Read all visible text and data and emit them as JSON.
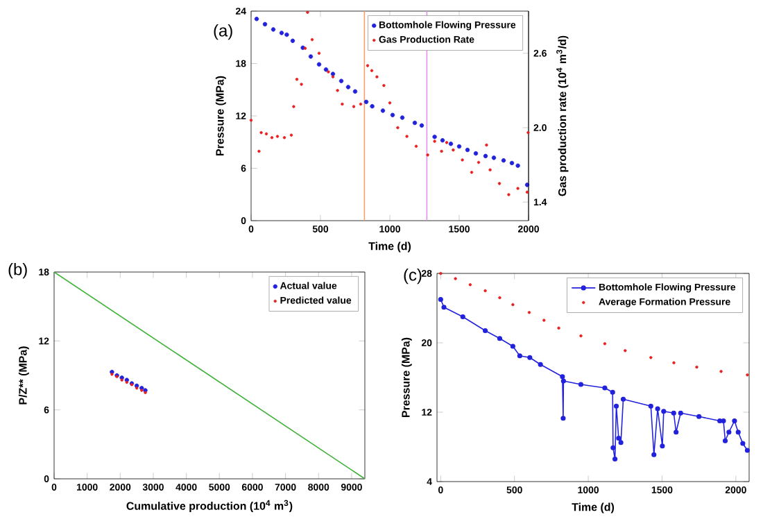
{
  "chart_data": [
    {
      "type": "scatter",
      "title": "(a)",
      "xlabel": "Time (d)",
      "ylabel": "Pressure (MPa)",
      "y2label": "Gas production rate (10$^{4}$ m$^{3}$/d)",
      "xlim": [
        0,
        2000
      ],
      "xticks": [
        0,
        500,
        1000,
        1500,
        2000
      ],
      "ylim": [
        0,
        24
      ],
      "yticks": [
        0,
        6,
        12,
        18,
        24
      ],
      "y2lim": [
        1.25,
        2.94
      ],
      "y2ticks": [
        1.4,
        {
          "value": 2.0,
          "label": "2.0"
        },
        2.6
      ],
      "legend": "top right",
      "marker": "circle",
      "ref_lines": [
        {
          "axis": "x",
          "value": 817,
          "color": "#f5a070"
        },
        {
          "axis": "x",
          "value": 1267,
          "color": "#e090e8"
        }
      ],
      "series": [
        {
          "name": "Bottomhole Flowing Pressure",
          "color": "#2222dd",
          "x": [
            40,
            100,
            160,
            220,
            257,
            300,
            373,
            430,
            490,
            540,
            590,
            650,
            700,
            750,
            830,
            873,
            950,
            1020,
            1090,
            1180,
            1230,
            1323,
            1380,
            1440,
            1500,
            1560,
            1620,
            1690,
            1750,
            1820,
            1880,
            1923,
            1990
          ],
          "values": [
            23.1,
            22.5,
            21.9,
            21.5,
            21.3,
            20.6,
            19.8,
            18.8,
            17.9,
            17.3,
            16.8,
            16.0,
            15.3,
            14.8,
            13.6,
            13.1,
            12.6,
            12.1,
            11.8,
            11.2,
            10.9,
            9.6,
            9.2,
            8.8,
            8.5,
            8.1,
            7.7,
            7.4,
            7.2,
            6.9,
            6.6,
            6.3,
            4.1
          ]
        },
        {
          "name": "Gas Production Rate",
          "color": "#e82020",
          "axis": "y2",
          "x": [
            0,
            57,
            73,
            110,
            150,
            190,
            240,
            290,
            307,
            330,
            363,
            390,
            407,
            440,
            490,
            557,
            590,
            623,
            657,
            740,
            790,
            840,
            870,
            907,
            957,
            1000,
            1057,
            1123,
            1190,
            1273,
            1323,
            1373,
            1410,
            1457,
            1523,
            1590,
            1640,
            1697,
            1723,
            1790,
            1857,
            1923,
            1990,
            1997
          ],
          "values": [
            2.06,
            1.81,
            1.96,
            1.95,
            1.92,
            1.93,
            1.92,
            1.94,
            2.17,
            2.39,
            2.35,
            2.64,
            2.93,
            2.71,
            2.6,
            2.45,
            2.41,
            2.3,
            2.19,
            2.17,
            2.19,
            2.5,
            2.46,
            2.41,
            2.34,
            2.2,
            2.0,
            1.93,
            1.85,
            1.78,
            1.89,
            1.81,
            1.88,
            1.82,
            1.74,
            1.64,
            1.72,
            1.86,
            1.66,
            1.55,
            1.46,
            1.51,
            1.48,
            1.96
          ]
        }
      ]
    },
    {
      "type": "scatter",
      "title": "(b)",
      "xlabel": "Cumulative production (10$^{4}$ m$^{3}$)",
      "ylabel": "P/Z** (MPa)",
      "xlim": [
        0,
        9400
      ],
      "xticks": [
        0,
        1000,
        2000,
        3000,
        4000,
        5000,
        6000,
        7000,
        8000,
        9000
      ],
      "ylim": [
        0,
        18
      ],
      "yticks": [
        0,
        6,
        12,
        18
      ],
      "legend": "top right",
      "marker": "circle",
      "series": [
        {
          "name": "Actual value",
          "color": "#2222dd",
          "x": [
            1750,
            1900,
            2050,
            2200,
            2350,
            2500,
            2650,
            2760
          ],
          "values": [
            9.3,
            9.0,
            8.8,
            8.6,
            8.3,
            8.1,
            7.9,
            7.7
          ]
        },
        {
          "name": "Predicted value",
          "color": "#e82020",
          "x": [
            1750,
            1900,
            2050,
            2200,
            2350,
            2500,
            2650,
            2760
          ],
          "values": [
            9.1,
            8.9,
            8.6,
            8.4,
            8.2,
            7.9,
            7.7,
            7.5
          ]
        },
        {
          "type": "line",
          "marker": "none",
          "color": "#3cb034",
          "x": [
            0,
            9400
          ],
          "values": [
            18,
            0
          ]
        }
      ]
    },
    {
      "type": "scatter",
      "title": "(c)",
      "xlabel": "Time (d)",
      "ylabel": "Pressure (MPa)",
      "xlim": [
        -25,
        2090
      ],
      "xticks": [
        0,
        500,
        1000,
        1500,
        2000
      ],
      "ylim": [
        4,
        28
      ],
      "yticks": [
        4,
        12,
        20,
        28
      ],
      "legend": "top right",
      "marker": "circle",
      "series": [
        {
          "name": "Bottomhole Flowing Pressure",
          "type": "line",
          "color": "#2222dd",
          "x": [
            0,
            22,
            150,
            302,
            400,
            489,
            536,
            604,
            676,
            825,
            830,
            832,
            950,
            1112,
            1165,
            1168,
            1181,
            1190,
            1206,
            1221,
            1237,
            1424,
            1445,
            1470,
            1502,
            1511,
            1579,
            1595,
            1626,
            1750,
            1891,
            1916,
            1928,
            1953,
            1991,
            2016,
            2047,
            2078
          ],
          "values": [
            25.0,
            24.1,
            23.0,
            21.4,
            20.5,
            19.6,
            18.5,
            18.3,
            17.5,
            16.1,
            11.3,
            15.6,
            15.2,
            14.8,
            14.3,
            7.9,
            6.6,
            12.7,
            9.0,
            8.5,
            13.5,
            12.7,
            7.1,
            12.4,
            8.1,
            12.1,
            11.9,
            9.7,
            11.9,
            11.5,
            11.0,
            11.0,
            8.7,
            9.7,
            11.0,
            9.7,
            8.4,
            7.6
          ]
        },
        {
          "name": "Average Formation Pressure",
          "color": "#e82020",
          "x": [
            0,
            100,
            200,
            302,
            400,
            489,
            600,
            700,
            800,
            950,
            1112,
            1250,
            1424,
            1580,
            1735,
            1900,
            2078
          ],
          "values": [
            28.0,
            27.4,
            26.7,
            26.0,
            25.2,
            24.4,
            23.5,
            22.6,
            21.7,
            20.8,
            19.9,
            19.1,
            18.3,
            17.7,
            17.2,
            16.7,
            16.3
          ]
        }
      ]
    }
  ]
}
